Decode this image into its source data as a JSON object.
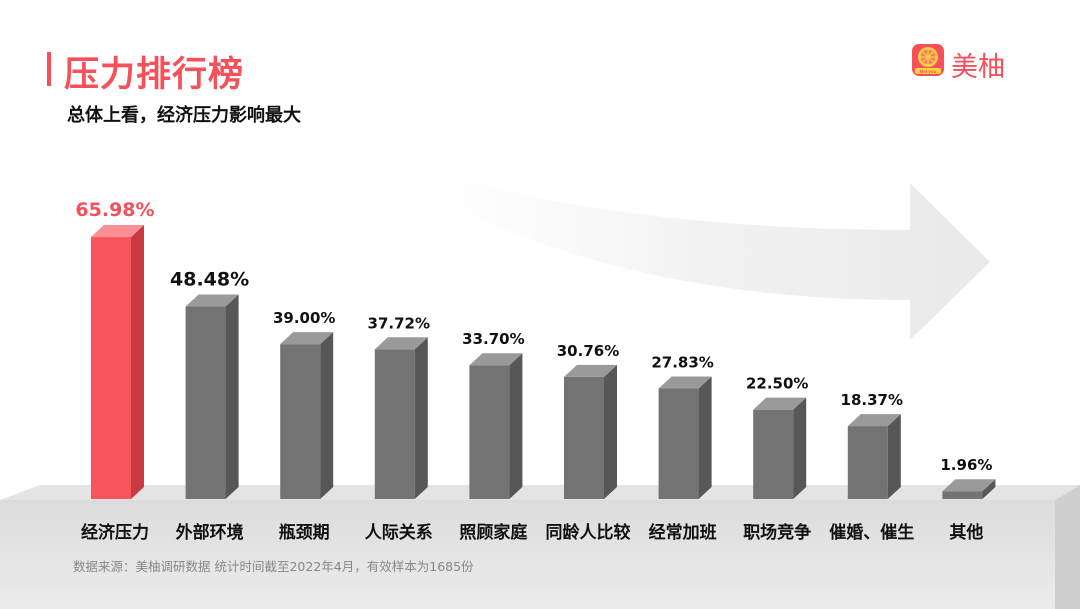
{
  "header": {
    "title": "压力排行榜",
    "subtitle": "总体上看，经济压力影响最大"
  },
  "brand": {
    "logo_icon": "grapefruit-logo-icon",
    "logo_badge_text": "Mei you",
    "name": "美柚",
    "color": "#f7505a"
  },
  "footer": {
    "source_note": "数据来源：美柚调研数据  统计时间截至2022年4月，有效样本为1685份"
  },
  "chart_data": {
    "type": "bar",
    "title": "压力排行榜",
    "subtitle": "总体上看，经济压力影响最大",
    "categories": [
      "经济压力",
      "外部环境",
      "瓶颈期",
      "人际关系",
      "照顾家庭",
      "同龄人比较",
      "经常加班",
      "职场竞争",
      "催婚、催生",
      "其他"
    ],
    "values": [
      65.98,
      48.48,
      39.0,
      37.72,
      33.7,
      30.76,
      27.83,
      22.5,
      18.37,
      1.96
    ],
    "value_labels": [
      "65.98%",
      "48.48%",
      "39.00%",
      "37.72%",
      "33.70%",
      "30.76%",
      "27.83%",
      "22.50%",
      "18.37%",
      "1.96%"
    ],
    "unit": "%",
    "xlabel": "",
    "ylabel": "",
    "ylim": [
      0,
      70
    ],
    "grid": false,
    "legend": "none",
    "style": "3d-bars",
    "highlight_index": 0,
    "colors": {
      "highlight_front": "#f7545e",
      "highlight_side": "#c93a43",
      "highlight_top": "#fb8f95",
      "bar_front": "#737373",
      "bar_side": "#575757",
      "bar_top": "#9a9a9a",
      "highlight_label": "#f7505a",
      "label": "#111111"
    }
  }
}
